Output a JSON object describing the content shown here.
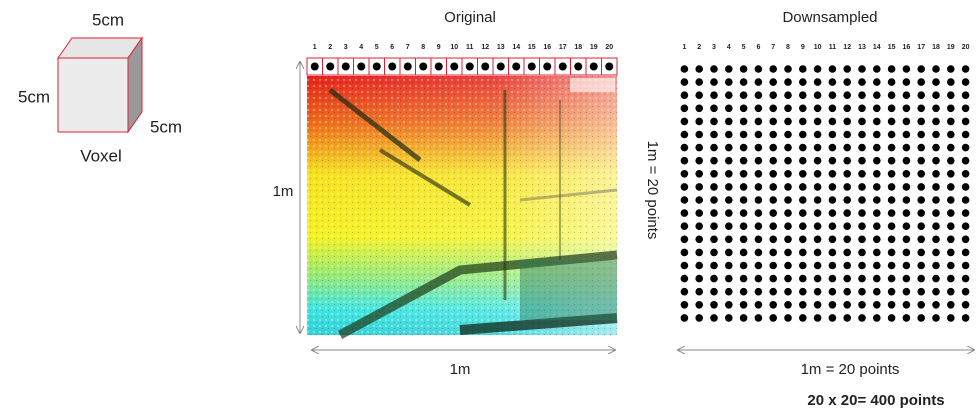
{
  "voxel": {
    "top_label": "5cm",
    "left_label": "5cm",
    "right_label": "5cm",
    "label": "Voxel"
  },
  "original": {
    "title": "Original",
    "column_numbers": [
      1,
      2,
      3,
      4,
      5,
      6,
      7,
      8,
      9,
      10,
      11,
      12,
      13,
      14,
      15,
      16,
      17,
      18,
      19,
      20
    ],
    "height_label": "1m",
    "width_label": "1m"
  },
  "downsampled": {
    "title": "Downsampled",
    "column_numbers": [
      1,
      2,
      3,
      4,
      5,
      6,
      7,
      8,
      9,
      10,
      11,
      12,
      13,
      14,
      15,
      16,
      17,
      18,
      19,
      20
    ],
    "height_label": "1m = 20 points",
    "width_label": "1m = 20 points"
  },
  "total": "20 x 20= 400 points"
}
